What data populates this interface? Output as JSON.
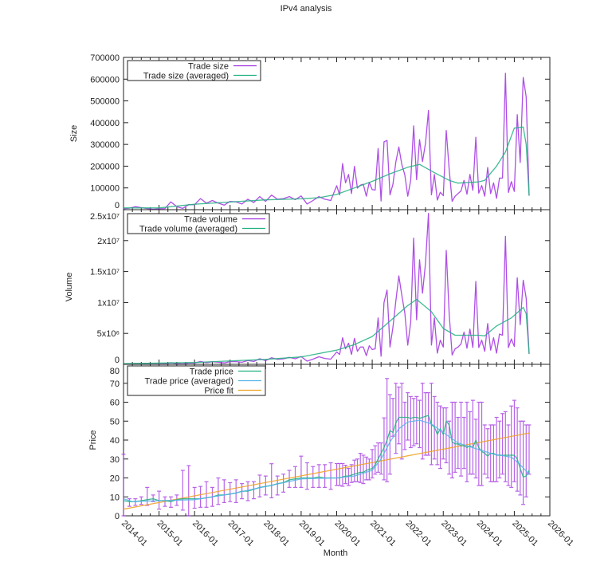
{
  "title": "IPv4 analysis",
  "colors": {
    "purple": "#a030e0",
    "green": "#20b080",
    "blue": "#56b4e9",
    "orange": "#f0a020",
    "axis": "#222222"
  },
  "xaxis": {
    "label": "Month",
    "range": [
      "2014-01",
      "2026-01"
    ],
    "ticks": [
      "2014-01",
      "2015-01",
      "2016-01",
      "2017-01",
      "2018-01",
      "2019-01",
      "2020-01",
      "2021-01",
      "2022-01",
      "2023-01",
      "2024-01",
      "2025-01",
      "2026-01"
    ]
  },
  "chart_data": [
    {
      "type": "line",
      "ylabel": "Size",
      "ylim": [
        0,
        700000
      ],
      "yticks": [
        0,
        100000,
        200000,
        300000,
        400000,
        500000,
        600000,
        700000
      ],
      "ytick_labels": [
        "0",
        "100000",
        "200000",
        "300000",
        "400000",
        "500000",
        "600000",
        "700000"
      ],
      "legend": "top-left",
      "series": [
        {
          "name": "Trade size",
          "color": "purple",
          "x": "main",
          "y": [
            4000,
            7000,
            14000,
            9000,
            5000,
            2000,
            4000,
            5000,
            36000,
            14000,
            6000,
            23000,
            23000,
            51000,
            30000,
            42000,
            30000,
            21000,
            38000,
            36000,
            26000,
            48000,
            33000,
            60000,
            38000,
            67000,
            48000,
            51000,
            60000,
            46000,
            63000,
            26000,
            42000,
            60000,
            48000,
            42000,
            110000,
            68000,
            212000,
            123000,
            162000,
            74000,
            199000,
            99000,
            113000,
            117000,
            62000,
            126000,
            92000,
            90000,
            281000,
            40000,
            312000,
            318000,
            68000,
            117000,
            221000,
            288000,
            208000,
            160000,
            62000,
            135000,
            385000,
            138000,
            322000,
            221000,
            306000,
            456000,
            68000,
            162000,
            44000,
            80000,
            64000,
            364000,
            184000,
            38000,
            62000,
            74000,
            86000,
            135000,
            71000,
            162000,
            89000,
            333000,
            76000,
            111000,
            62000,
            194000,
            74000,
            123000,
            52000,
            145000,
            145000,
            627000,
            79000,
            129000,
            84000,
            437000,
            217000,
            608000,
            519000,
            64000
          ]
        },
        {
          "name": "Trade size (averaged)",
          "color": "green",
          "x": [
            "2014-01",
            "2015-01",
            "2016-01",
            "2017-01",
            "2018-01",
            "2019-01",
            "2019-07",
            "2020-01",
            "2020-07",
            "2021-01",
            "2021-07",
            "2022-01",
            "2022-05",
            "2022-10",
            "2023-03",
            "2023-06",
            "2024-01",
            "2024-03",
            "2024-07",
            "2024-10",
            "2025-01",
            "2025-04",
            "2025-05",
            "2025-06"
          ],
          "y": [
            8000,
            8000,
            25000,
            35000,
            45000,
            50000,
            55000,
            70000,
            100000,
            130000,
            165000,
            195000,
            208000,
            170000,
            135000,
            122000,
            128000,
            135000,
            200000,
            265000,
            375000,
            380000,
            300000,
            64000
          ]
        }
      ]
    },
    {
      "type": "line",
      "ylabel": "Volume",
      "ylim": [
        0,
        25000000
      ],
      "yticks": [
        0,
        5000000,
        10000000,
        15000000,
        20000000,
        25000000
      ],
      "ytick_labels": [
        "0",
        "5x10⁶",
        "1x10⁷",
        "1.5x10⁷",
        "2x10⁷",
        "2.5x10⁷"
      ],
      "legend": "top-left",
      "series": [
        {
          "name": "Trade volume",
          "color": "purple",
          "x": "main",
          "y": [
            32000,
            52500,
            105000,
            72000,
            42500,
            18000,
            32000,
            40000,
            270000,
            119000,
            54000,
            207000,
            207000,
            459000,
            285000,
            420000,
            330000,
            231000,
            437000,
            432000,
            338000,
            624000,
            462000,
            900000,
            589000,
            1072000,
            816000,
            892500,
            1140000,
            897000,
            1260000,
            520000,
            840000,
            1230000,
            960000,
            840000,
            2000000,
            1600000,
            4300000,
            2500000,
            3400000,
            1600000,
            4200000,
            2100000,
            2800000,
            2800000,
            1400000,
            3000000,
            2400000,
            2500000,
            7500000,
            1300000,
            10000000,
            12000000,
            2800000,
            6000000,
            10300000,
            14300000,
            11200000,
            8300000,
            3100000,
            6800000,
            20400000,
            7200000,
            16900000,
            11500000,
            16400000,
            24400000,
            3100000,
            7500000,
            1800000,
            3900000,
            2800000,
            18400000,
            8100000,
            1500000,
            2500000,
            2800000,
            3300000,
            5200000,
            2600000,
            5700000,
            2700000,
            13400000,
            2700000,
            3900000,
            2100000,
            6600000,
            2300000,
            4300000,
            1800000,
            4900000,
            4700000,
            20700000,
            2700000,
            4100000,
            2900000,
            14000000,
            6400000,
            13600000,
            10700000,
            1700000
          ]
        },
        {
          "name": "Trade volume (averaged)",
          "color": "green",
          "x": [
            "2014-01",
            "2016-01",
            "2018-01",
            "2019-01",
            "2020-01",
            "2020-07",
            "2021-01",
            "2021-07",
            "2022-01",
            "2022-04",
            "2022-09",
            "2023-01",
            "2023-05",
            "2024-01",
            "2024-03",
            "2024-07",
            "2024-12",
            "2025-04",
            "2025-05",
            "2025-06"
          ],
          "y": [
            100000,
            300000,
            800000,
            1200000,
            2300000,
            3200000,
            4500000,
            7000000,
            9500000,
            10500000,
            8500000,
            5800000,
            4700000,
            4700000,
            4600000,
            6200000,
            7500000,
            9200000,
            8200000,
            1700000
          ]
        }
      ]
    },
    {
      "type": "line",
      "ylabel": "Price",
      "xlabel": "Month",
      "ylim": [
        0,
        80
      ],
      "yticks": [
        0,
        10,
        20,
        30,
        40,
        50,
        60,
        70,
        80
      ],
      "ytick_labels": [
        "0",
        "10",
        "20",
        "30",
        "40",
        "50",
        "60",
        "70",
        "80"
      ],
      "legend": "top-left",
      "error_bars": {
        "color": "purple",
        "low": [
          0,
          5,
          5.5,
          6,
          5.5,
          7.5,
          3.5,
          5,
          4.5,
          5.5,
          3,
          0,
          4,
          4.5,
          4.5,
          5,
          6,
          7,
          7.5,
          7,
          9,
          8,
          9,
          10,
          11,
          9.5,
          11,
          12.5,
          15,
          15,
          15,
          14,
          15,
          15,
          15,
          14,
          16,
          16,
          15.6,
          17,
          16,
          17.6,
          18,
          18,
          17.6,
          17,
          19,
          19,
          20,
          22,
          23,
          22,
          19,
          18,
          22,
          42,
          33,
          38,
          30,
          35,
          40,
          36,
          37,
          38,
          36,
          30,
          32,
          32,
          27,
          30,
          27,
          25,
          30,
          28,
          22,
          20,
          23,
          25,
          21,
          25,
          18,
          22,
          22,
          20,
          16,
          16,
          22,
          20,
          18,
          18,
          18,
          20,
          22,
          18,
          16,
          15,
          18,
          13,
          11,
          6,
          10,
          22
        ],
        "high": [
          32.5,
          9,
          9,
          10,
          15,
          11,
          13,
          10,
          10,
          11,
          24,
          26.5,
          15,
          15.5,
          18,
          15,
          20,
          19,
          17.5,
          19,
          17,
          18,
          18,
          21.5,
          21,
          27.5,
          21,
          22,
          24,
          26,
          31.5,
          28,
          26,
          27,
          27,
          28,
          27.6,
          27.6,
          27.6,
          26.7,
          25,
          27,
          29.4,
          30,
          33,
          32,
          31,
          30,
          35,
          37,
          38.5,
          38.5,
          51.7,
          72.5,
          64,
          62,
          70,
          68,
          70,
          60,
          65,
          63,
          62,
          63,
          61,
          70,
          65,
          65,
          70,
          63,
          60,
          58,
          57,
          57,
          50,
          60,
          60,
          52,
          60,
          52,
          60,
          55,
          61,
          51,
          60,
          60,
          48,
          46,
          48,
          48,
          52,
          50,
          54,
          55,
          48,
          58,
          61,
          57,
          50,
          50,
          48,
          48
        ]
      },
      "series": [
        {
          "name": "Trade price",
          "color": "green",
          "x": "main",
          "y": [
            8,
            7.5,
            7.5,
            8,
            8.5,
            9,
            8,
            8,
            7.5,
            8.5,
            9,
            9,
            9,
            9,
            9.5,
            10,
            11,
            11,
            11.5,
            12,
            13,
            13,
            14,
            15,
            15.5,
            16,
            17,
            17.5,
            19,
            19.5,
            20,
            20,
            20,
            20.5,
            20,
            20,
            20,
            20,
            20.5,
            21,
            21,
            21.5,
            22,
            22.5,
            23,
            23,
            24,
            24.5,
            25,
            27,
            30,
            33,
            36,
            40,
            45,
            44,
            49,
            52,
            52,
            52,
            52,
            51.5,
            52,
            52,
            51.5,
            52,
            52.5,
            53,
            48,
            47,
            43,
            46,
            43,
            50,
            48,
            39,
            38,
            38,
            37,
            37,
            36,
            37,
            36,
            40,
            36,
            34,
            33,
            31.5,
            33,
            33,
            32,
            32,
            32,
            32,
            32,
            32,
            32,
            30,
            25,
            20.5,
            21,
            24
          ]
        },
        {
          "name": "Trade price (averaged)",
          "color": "blue",
          "x": [
            "2014-01",
            "2014-04",
            "2015-01",
            "2016-01",
            "2017-01",
            "2018-01",
            "2019-01",
            "2020-01",
            "2020-07",
            "2021-01",
            "2021-04",
            "2021-07",
            "2021-10",
            "2022-01",
            "2022-05",
            "2022-09",
            "2023-01",
            "2023-06",
            "2024-01",
            "2024-06",
            "2024-12",
            "2025-03",
            "2025-06"
          ],
          "y": [
            9,
            7.5,
            8,
            8.5,
            11.5,
            15.5,
            19.5,
            20,
            21,
            24,
            30,
            39,
            46,
            49.5,
            50.5,
            48.5,
            44,
            38.5,
            35,
            32.5,
            31,
            27,
            22
          ]
        },
        {
          "name": "Price fit",
          "color": "orange",
          "x": [
            "2014-01",
            "2025-06"
          ],
          "y": [
            3.5,
            43.7
          ]
        }
      ]
    }
  ],
  "main_x": [
    "2014-01",
    "2014-03",
    "2014-05",
    "2014-07",
    "2014-09",
    "2014-11",
    "2015-01",
    "2015-03",
    "2015-05",
    "2015-07",
    "2015-09",
    "2015-11",
    "2016-01",
    "2016-03",
    "2016-05",
    "2016-07",
    "2016-09",
    "2016-11",
    "2017-01",
    "2017-03",
    "2017-05",
    "2017-07",
    "2017-09",
    "2017-11",
    "2018-01",
    "2018-03",
    "2018-05",
    "2018-07",
    "2018-09",
    "2018-11",
    "2019-01",
    "2019-03",
    "2019-05",
    "2019-07",
    "2019-09",
    "2019-11",
    "2020-01",
    "2020-02",
    "2020-03",
    "2020-04",
    "2020-05",
    "2020-06",
    "2020-07",
    "2020-08",
    "2020-09",
    "2020-10",
    "2020-11",
    "2020-12",
    "2021-01",
    "2021-02",
    "2021-03",
    "2021-04",
    "2021-05",
    "2021-06",
    "2021-07",
    "2021-08",
    "2021-09",
    "2021-10",
    "2021-11",
    "2021-12",
    "2022-01",
    "2022-02",
    "2022-03",
    "2022-04",
    "2022-05",
    "2022-06",
    "2022-07",
    "2022-08",
    "2022-09",
    "2022-10",
    "2022-11",
    "2022-12",
    "2023-01",
    "2023-02",
    "2023-03",
    "2023-04",
    "2023-05",
    "2023-06",
    "2023-07",
    "2023-08",
    "2023-09",
    "2023-10",
    "2023-11",
    "2023-12",
    "2024-01",
    "2024-02",
    "2024-03",
    "2024-04",
    "2024-05",
    "2024-06",
    "2024-07",
    "2024-08",
    "2024-09",
    "2024-10",
    "2024-11",
    "2024-12",
    "2025-01",
    "2025-02",
    "2025-03",
    "2025-04",
    "2025-05",
    "2025-06"
  ]
}
